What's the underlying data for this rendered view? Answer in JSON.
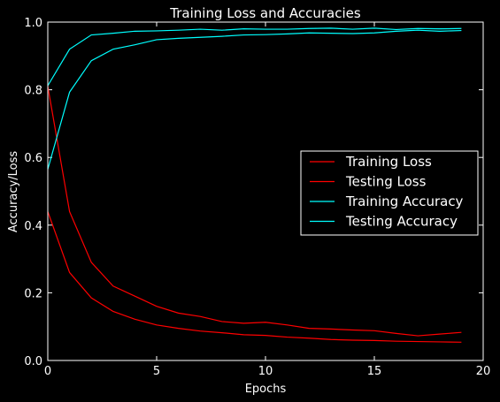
{
  "chart_data": {
    "type": "line",
    "title": "Training Loss and Accuracies",
    "xlabel": "Epochs",
    "ylabel": "Accuracy/Loss",
    "xlim": [
      0,
      20
    ],
    "ylim": [
      0.0,
      1.0
    ],
    "xticks": [
      "0",
      "5",
      "10",
      "15",
      "20"
    ],
    "yticks": [
      "0.0",
      "0.2",
      "0.4",
      "0.6",
      "0.8",
      "1.0"
    ],
    "grid": false,
    "legend_position": "center-right",
    "x": [
      0,
      1,
      2,
      3,
      4,
      5,
      6,
      7,
      8,
      9,
      10,
      11,
      12,
      13,
      14,
      15,
      16,
      17,
      18,
      19
    ],
    "series": [
      {
        "name": "Training Loss",
        "color": "#ff0000",
        "values": [
          0.81,
          0.44,
          0.29,
          0.22,
          0.19,
          0.16,
          0.14,
          0.13,
          0.115,
          0.11,
          0.113,
          0.105,
          0.095,
          0.093,
          0.09,
          0.088,
          0.08,
          0.073,
          0.078,
          0.083
        ]
      },
      {
        "name": "Testing Loss",
        "color": "#ff0000",
        "values": [
          0.44,
          0.26,
          0.185,
          0.145,
          0.122,
          0.105,
          0.095,
          0.087,
          0.082,
          0.076,
          0.074,
          0.069,
          0.066,
          0.062,
          0.06,
          0.059,
          0.057,
          0.056,
          0.055,
          0.054
        ]
      },
      {
        "name": "Training Accuracy",
        "color": "#00ffff",
        "values": [
          0.565,
          0.793,
          0.886,
          0.92,
          0.933,
          0.948,
          0.952,
          0.955,
          0.958,
          0.962,
          0.963,
          0.965,
          0.968,
          0.967,
          0.966,
          0.968,
          0.973,
          0.976,
          0.973,
          0.975
        ]
      },
      {
        "name": "Testing Accuracy",
        "color": "#00ffff",
        "values": [
          0.812,
          0.92,
          0.962,
          0.967,
          0.973,
          0.974,
          0.976,
          0.979,
          0.976,
          0.98,
          0.979,
          0.979,
          0.981,
          0.982,
          0.979,
          0.982,
          0.978,
          0.981,
          0.98,
          0.981
        ]
      }
    ]
  }
}
